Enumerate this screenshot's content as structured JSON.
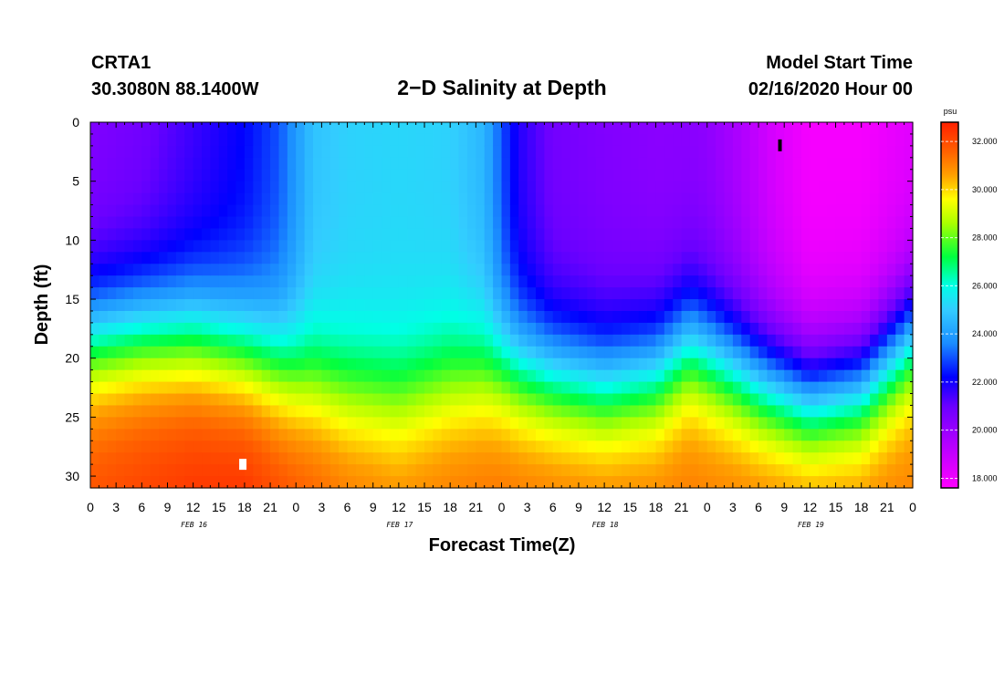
{
  "header": {
    "station": "CRTA1",
    "coords": "30.3080N 88.1400W",
    "title": "2−D Salinity at Depth",
    "start_label": "Model Start Time",
    "start_value": "02/16/2020 Hour 00"
  },
  "chart_data": {
    "type": "heatmap",
    "title": "2−D Salinity at Depth",
    "xlabel": "Forecast Time(Z)",
    "ylabel": "Depth (ft)",
    "x_range_hours": [
      0,
      96
    ],
    "y_range_ft": [
      0,
      31
    ],
    "y_reversed": true,
    "x_ticks_hours": [
      0,
      3,
      6,
      9,
      12,
      15,
      18,
      21,
      24,
      27,
      30,
      33,
      36,
      39,
      42,
      45,
      48,
      51,
      54,
      57,
      60,
      63,
      66,
      69,
      72,
      75,
      78,
      81,
      84,
      87,
      90,
      93,
      96
    ],
    "x_tick_labels": [
      "0",
      "3",
      "6",
      "9",
      "12",
      "15",
      "18",
      "21",
      "0",
      "3",
      "6",
      "9",
      "12",
      "15",
      "18",
      "21",
      "0",
      "3",
      "6",
      "9",
      "12",
      "15",
      "18",
      "21",
      "0",
      "3",
      "6",
      "9",
      "12",
      "15",
      "18",
      "21",
      "0"
    ],
    "y_ticks": [
      0,
      5,
      10,
      15,
      20,
      25,
      30
    ],
    "y_tick_labels": [
      "0",
      "5",
      "10",
      "15",
      "20",
      "25",
      "30"
    ],
    "date_labels": [
      {
        "hour": 12,
        "text": "FEB 16"
      },
      {
        "hour": 36,
        "text": "FEB 17"
      },
      {
        "hour": 60,
        "text": "FEB 18"
      },
      {
        "hour": 84,
        "text": "FEB 19"
      }
    ],
    "colorbar": {
      "unit": "psu",
      "min": 17.6,
      "max": 32.8,
      "ticks": [
        18,
        20,
        22,
        24,
        26,
        28,
        30,
        32
      ],
      "tick_labels": [
        "18.000",
        "20.000",
        "22.000",
        "24.000",
        "26.000",
        "28.000",
        "30.000",
        "32.000"
      ],
      "stops": [
        {
          "value": 17.6,
          "color": "#ff00ff"
        },
        {
          "value": 19.5,
          "color": "#b000ff"
        },
        {
          "value": 21.0,
          "color": "#6a00ff"
        },
        {
          "value": 22.2,
          "color": "#0000ff"
        },
        {
          "value": 23.6,
          "color": "#1a8cff"
        },
        {
          "value": 25.0,
          "color": "#33ccff"
        },
        {
          "value": 26.0,
          "color": "#00ffe6"
        },
        {
          "value": 27.2,
          "color": "#00ff40"
        },
        {
          "value": 28.6,
          "color": "#aaff00"
        },
        {
          "value": 29.6,
          "color": "#ffff00"
        },
        {
          "value": 30.6,
          "color": "#ffa000"
        },
        {
          "value": 31.6,
          "color": "#ff6000"
        },
        {
          "value": 32.8,
          "color": "#ff2000"
        }
      ]
    },
    "surface_salinity_by_hour": {
      "hours": [
        0,
        6,
        12,
        18,
        22,
        26,
        30,
        36,
        42,
        46,
        48,
        50,
        54,
        60,
        66,
        70,
        72,
        76,
        80,
        84,
        90,
        96
      ],
      "values": [
        20.5,
        20.8,
        21.5,
        22.2,
        23.0,
        24.8,
        25.1,
        25.2,
        25.1,
        24.5,
        23.0,
        21.8,
        20.8,
        20.5,
        20.3,
        20.3,
        20.2,
        19.5,
        18.5,
        17.8,
        17.8,
        18.3
      ]
    },
    "halocline_depth_ft": {
      "hours": [
        0,
        6,
        12,
        18,
        24,
        30,
        36,
        42,
        48,
        54,
        60,
        66,
        70,
        74,
        78,
        84,
        90,
        96
      ],
      "values": [
        18.5,
        18,
        18.2,
        19.5,
        21.5,
        23,
        23.5,
        22,
        21,
        21.8,
        22.5,
        21.5,
        19,
        20.5,
        22,
        23.5,
        22.5,
        18
      ]
    },
    "bottom_salinity_by_hour": {
      "hours": [
        0,
        12,
        18,
        24,
        30,
        36,
        48,
        60,
        72,
        84,
        96
      ],
      "values": [
        32.0,
        32.5,
        32.6,
        32.0,
        31.5,
        31.2,
        31.5,
        31.4,
        31.3,
        31.5,
        31.2
      ]
    },
    "markers": [
      {
        "kind": "max",
        "hour": 17.8,
        "depth_ft": 29.0,
        "color": "#ffffff"
      },
      {
        "kind": "min",
        "hour": 80.5,
        "depth_ft": 2.0,
        "color": "#000000"
      }
    ]
  }
}
